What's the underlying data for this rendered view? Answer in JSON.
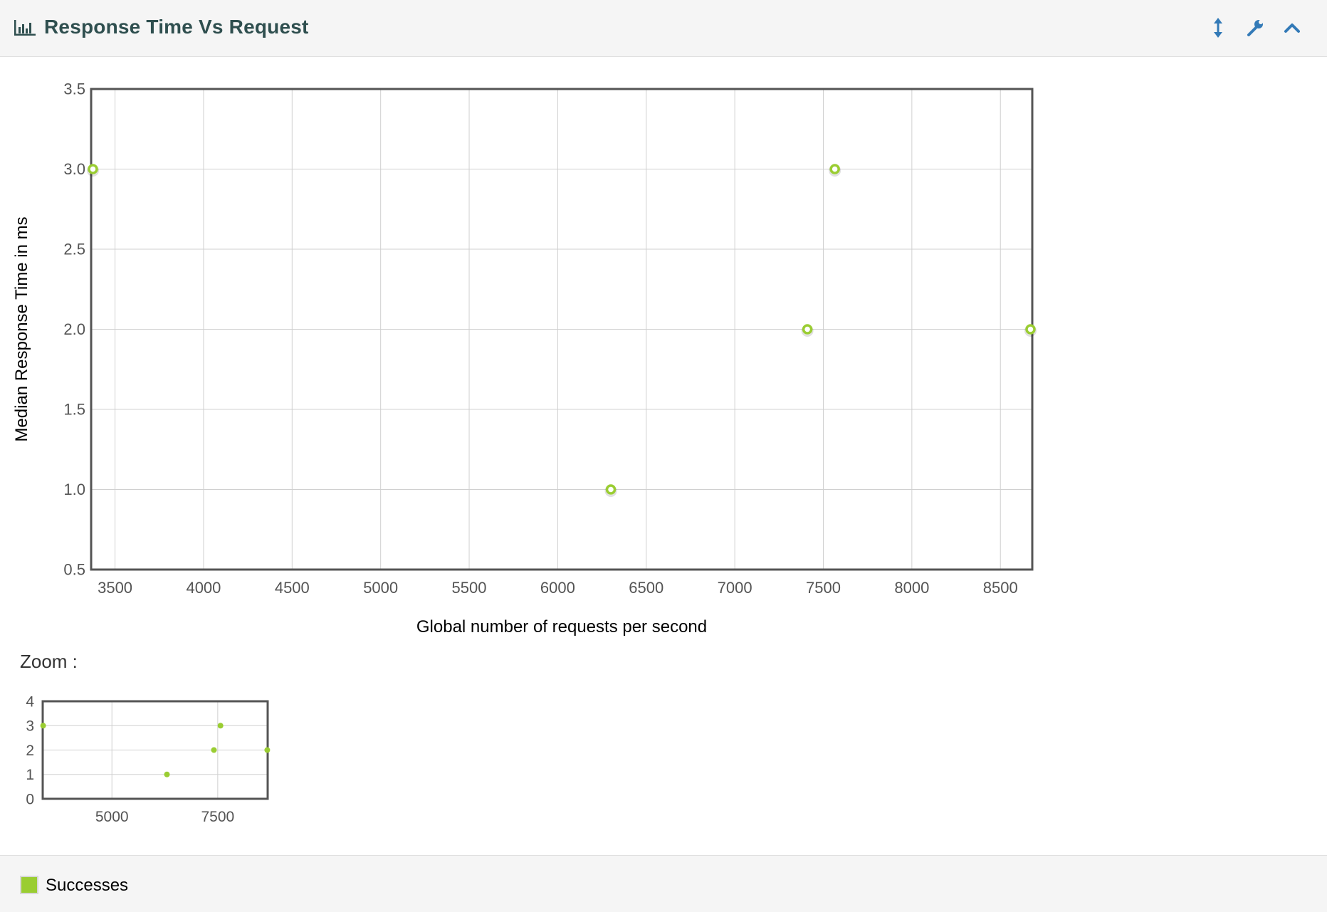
{
  "header": {
    "title": "Response Time Vs Request",
    "icons": {
      "chart": "bar-chart-icon",
      "resize": "vertical-resize-icon",
      "settings": "wrench-icon",
      "collapse": "chevron-up-icon"
    }
  },
  "zoom": {
    "label": "Zoom :"
  },
  "legend": {
    "items": [
      {
        "label": "Successes",
        "color": "#9acd32"
      }
    ]
  },
  "chart_data": [
    {
      "type": "scatter",
      "title": "",
      "xlabel": "Global number of requests per second",
      "ylabel": "Median Response Time in ms",
      "xlim": [
        3365,
        8680
      ],
      "ylim": [
        0.5,
        3.5
      ],
      "x_ticks": [
        3500,
        4000,
        4500,
        5000,
        5500,
        6000,
        6500,
        7000,
        7500,
        8000,
        8500
      ],
      "y_ticks": [
        0.5,
        1.0,
        1.5,
        2.0,
        2.5,
        3.0,
        3.5
      ],
      "grid": true,
      "series": [
        {
          "name": "Successes",
          "color": "#9acd32",
          "x": [
            3375,
            6300,
            7410,
            7565,
            8670
          ],
          "y": [
            3.0,
            1.0,
            2.0,
            3.0,
            2.0
          ]
        }
      ]
    },
    {
      "type": "scatter",
      "title": "",
      "xlim": [
        3365,
        8680
      ],
      "ylim": [
        0,
        4
      ],
      "x_ticks": [
        5000,
        7500
      ],
      "y_ticks": [
        0,
        1,
        2,
        3,
        4
      ],
      "grid": true,
      "series": [
        {
          "name": "Successes",
          "color": "#9acd32",
          "x": [
            3375,
            6300,
            7410,
            7565,
            8670
          ],
          "y": [
            3,
            1,
            2,
            3,
            2
          ]
        }
      ]
    }
  ]
}
